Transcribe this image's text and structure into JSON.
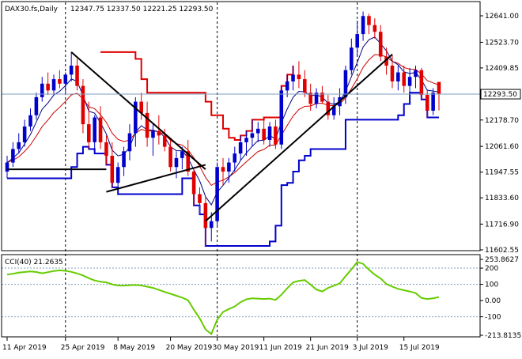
{
  "header": {
    "symbol_timeframe": "DAX30.fs,Daily",
    "ohlc": "12347.75 12337.50 12221.25 12293.50"
  },
  "cci_header": "CCI(40) 21.2635",
  "colors": {
    "up_candle": "#0000cc",
    "down_candle": "#e00000",
    "ma_fast": "#cc0000",
    "ma_slow": "#000080",
    "support_trail": "#0000cc",
    "resistance_trail": "#e00000",
    "cci_line": "#66cc00",
    "price_tag_bg": "#ffffff",
    "grid_dark": "#000000"
  },
  "chart_data": [
    {
      "type": "candlestick",
      "title": "",
      "price_axis": {
        "ticks": [
          "12641.00",
          "12523.70",
          "12409.85",
          "12293.50",
          "12178.70",
          "12061.60",
          "11947.55",
          "11833.60",
          "11716.90",
          "11602.55"
        ],
        "ylim": [
          11602.55,
          12641.0
        ],
        "current_price": "12293.50"
      },
      "time_axis": {
        "ticks": [
          "11 Apr 2019",
          "25 Apr 2019",
          "8 May 2019",
          "20 May 2019",
          "30 May 2019",
          "11 Jun 2019",
          "21 Jun 2019",
          "3 Jul 2019",
          "15 Jul 2019"
        ]
      },
      "candles": [
        {
          "o": 11950,
          "h": 12020,
          "l": 11920,
          "c": 11990
        },
        {
          "o": 11990,
          "h": 12080,
          "l": 11970,
          "c": 12050
        },
        {
          "o": 12050,
          "h": 12120,
          "l": 12030,
          "c": 12080
        },
        {
          "o": 12080,
          "h": 12180,
          "l": 12060,
          "c": 12150
        },
        {
          "o": 12150,
          "h": 12230,
          "l": 12130,
          "c": 12200
        },
        {
          "o": 12200,
          "h": 12300,
          "l": 12180,
          "c": 12280
        },
        {
          "o": 12280,
          "h": 12370,
          "l": 12260,
          "c": 12340
        },
        {
          "o": 12340,
          "h": 12390,
          "l": 12290,
          "c": 12310
        },
        {
          "o": 12310,
          "h": 12380,
          "l": 12290,
          "c": 12360
        },
        {
          "o": 12360,
          "h": 12400,
          "l": 12320,
          "c": 12340
        },
        {
          "o": 12340,
          "h": 12390,
          "l": 12300,
          "c": 12380
        },
        {
          "o": 12380,
          "h": 12480,
          "l": 12350,
          "c": 12420
        },
        {
          "o": 12420,
          "h": 12450,
          "l": 12310,
          "c": 12330
        },
        {
          "o": 12330,
          "h": 12360,
          "l": 12120,
          "c": 12160
        },
        {
          "o": 12160,
          "h": 12260,
          "l": 12050,
          "c": 12080
        },
        {
          "o": 12080,
          "h": 12200,
          "l": 12030,
          "c": 12190
        },
        {
          "o": 12190,
          "h": 12240,
          "l": 12050,
          "c": 12080
        },
        {
          "o": 12080,
          "h": 12110,
          "l": 11980,
          "c": 12020
        },
        {
          "o": 12020,
          "h": 12080,
          "l": 11880,
          "c": 11900
        },
        {
          "o": 11900,
          "h": 11990,
          "l": 11850,
          "c": 11970
        },
        {
          "o": 11970,
          "h": 12060,
          "l": 11930,
          "c": 12040
        },
        {
          "o": 12040,
          "h": 12160,
          "l": 12000,
          "c": 12120
        },
        {
          "o": 12120,
          "h": 12280,
          "l": 12060,
          "c": 12260
        },
        {
          "o": 12260,
          "h": 12300,
          "l": 12180,
          "c": 12210
        },
        {
          "o": 12210,
          "h": 12260,
          "l": 12060,
          "c": 12100
        },
        {
          "o": 12100,
          "h": 12160,
          "l": 12020,
          "c": 12130
        },
        {
          "o": 12130,
          "h": 12200,
          "l": 12070,
          "c": 12110
        },
        {
          "o": 12110,
          "h": 12140,
          "l": 12040,
          "c": 12060
        },
        {
          "o": 12060,
          "h": 12100,
          "l": 11950,
          "c": 11970
        },
        {
          "o": 11970,
          "h": 12040,
          "l": 11920,
          "c": 12010
        },
        {
          "o": 12010,
          "h": 12060,
          "l": 11960,
          "c": 12040
        },
        {
          "o": 12040,
          "h": 12090,
          "l": 11930,
          "c": 11950
        },
        {
          "o": 11950,
          "h": 11960,
          "l": 11800,
          "c": 11850
        },
        {
          "o": 11850,
          "h": 11880,
          "l": 11760,
          "c": 11810
        },
        {
          "o": 11810,
          "h": 11840,
          "l": 11620,
          "c": 11700
        },
        {
          "o": 11700,
          "h": 11770,
          "l": 11640,
          "c": 11730
        },
        {
          "o": 11730,
          "h": 11990,
          "l": 11710,
          "c": 11970
        },
        {
          "o": 11970,
          "h": 12010,
          "l": 11890,
          "c": 11950
        },
        {
          "o": 11950,
          "h": 12010,
          "l": 11900,
          "c": 11990
        },
        {
          "o": 11990,
          "h": 12060,
          "l": 11950,
          "c": 12030
        },
        {
          "o": 12030,
          "h": 12110,
          "l": 12000,
          "c": 12080
        },
        {
          "o": 12080,
          "h": 12130,
          "l": 12020,
          "c": 12100
        },
        {
          "o": 12100,
          "h": 12180,
          "l": 12060,
          "c": 12120
        },
        {
          "o": 12120,
          "h": 12170,
          "l": 12080,
          "c": 12140
        },
        {
          "o": 12140,
          "h": 12190,
          "l": 12070,
          "c": 12090
        },
        {
          "o": 12090,
          "h": 12170,
          "l": 12060,
          "c": 12150
        },
        {
          "o": 12150,
          "h": 12180,
          "l": 12050,
          "c": 12070
        },
        {
          "o": 12070,
          "h": 12330,
          "l": 12050,
          "c": 12310
        },
        {
          "o": 12310,
          "h": 12380,
          "l": 12280,
          "c": 12350
        },
        {
          "o": 12350,
          "h": 12420,
          "l": 12310,
          "c": 12380
        },
        {
          "o": 12380,
          "h": 12440,
          "l": 12320,
          "c": 12360
        },
        {
          "o": 12360,
          "h": 12400,
          "l": 12280,
          "c": 12300
        },
        {
          "o": 12300,
          "h": 12340,
          "l": 12220,
          "c": 12250
        },
        {
          "o": 12250,
          "h": 12320,
          "l": 12230,
          "c": 12300
        },
        {
          "o": 12300,
          "h": 12330,
          "l": 12250,
          "c": 12260
        },
        {
          "o": 12260,
          "h": 12290,
          "l": 12180,
          "c": 12200
        },
        {
          "o": 12200,
          "h": 12280,
          "l": 12180,
          "c": 12240
        },
        {
          "o": 12240,
          "h": 12320,
          "l": 12200,
          "c": 12280
        },
        {
          "o": 12280,
          "h": 12420,
          "l": 12250,
          "c": 12400
        },
        {
          "o": 12400,
          "h": 12540,
          "l": 12380,
          "c": 12500
        },
        {
          "o": 12500,
          "h": 12620,
          "l": 12460,
          "c": 12560
        },
        {
          "o": 12560,
          "h": 12660,
          "l": 12530,
          "c": 12640
        },
        {
          "o": 12640,
          "h": 12650,
          "l": 12560,
          "c": 12600
        },
        {
          "o": 12600,
          "h": 12630,
          "l": 12540,
          "c": 12570
        },
        {
          "o": 12570,
          "h": 12600,
          "l": 12440,
          "c": 12460
        },
        {
          "o": 12460,
          "h": 12500,
          "l": 12380,
          "c": 12420
        },
        {
          "o": 12420,
          "h": 12470,
          "l": 12320,
          "c": 12350
        },
        {
          "o": 12350,
          "h": 12420,
          "l": 12310,
          "c": 12390
        },
        {
          "o": 12390,
          "h": 12420,
          "l": 12300,
          "c": 12330
        },
        {
          "o": 12330,
          "h": 12410,
          "l": 12300,
          "c": 12370
        },
        {
          "o": 12370,
          "h": 12420,
          "l": 12320,
          "c": 12400
        },
        {
          "o": 12400,
          "h": 12410,
          "l": 12270,
          "c": 12290
        },
        {
          "o": 12290,
          "h": 12310,
          "l": 12190,
          "c": 12220
        },
        {
          "o": 12220,
          "h": 12320,
          "l": 12200,
          "c": 12300
        },
        {
          "o": 12347.75,
          "h": 12337.5,
          "l": 12221.25,
          "c": 12293.5
        }
      ]
    },
    {
      "type": "line",
      "title": "CCI(40) 21.2635",
      "axis": {
        "ticks": [
          "253.8627",
          "200",
          "100",
          "0.00",
          "-100",
          "-213.8135"
        ],
        "ylim": [
          -213.8135,
          253.8627
        ],
        "levels": [
          200,
          100,
          -100
        ]
      },
      "values": [
        160,
        165,
        172,
        176,
        180,
        176,
        168,
        175,
        182,
        186,
        183,
        177,
        167,
        155,
        138,
        124,
        116,
        112,
        100,
        93,
        92,
        94,
        96,
        93,
        86,
        78,
        66,
        53,
        42,
        30,
        18,
        2,
        -56,
        -110,
        -178,
        -206,
        -118,
        -70,
        -52,
        -36,
        -10,
        8,
        14,
        12,
        10,
        12,
        4,
        36,
        76,
        112,
        122,
        126,
        98,
        68,
        56,
        78,
        92,
        106,
        150,
        192,
        238,
        226,
        190,
        160,
        136,
        102,
        86,
        72,
        64,
        56,
        46,
        16,
        10,
        14,
        21.2635
      ]
    }
  ]
}
